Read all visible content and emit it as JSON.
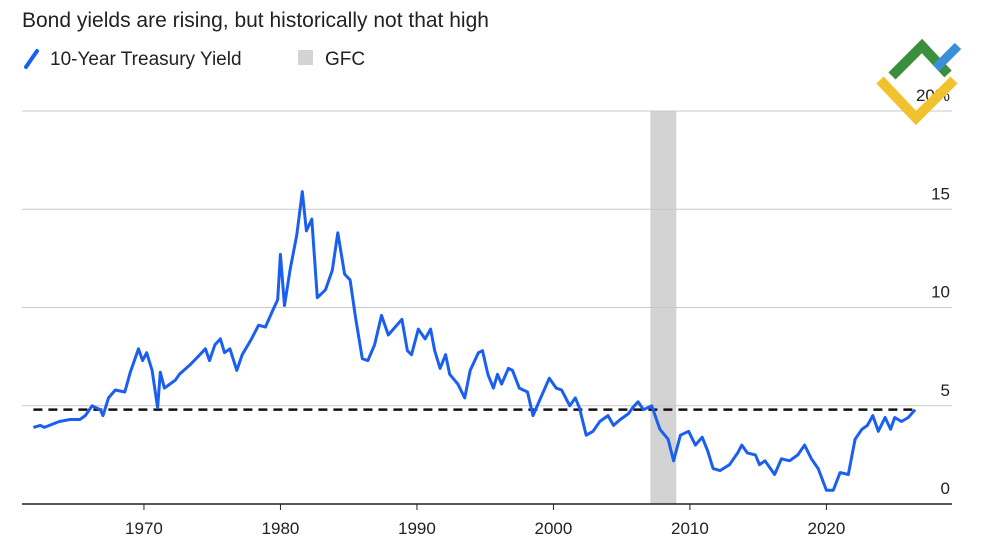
{
  "chart_data": {
    "type": "line",
    "title": "Bond yields are rising, but historically not that high",
    "series": [
      {
        "name": "10-Year Treasury Yield",
        "color": "#1a5ff0",
        "x": [
          1961.9,
          1962.4,
          1962.7,
          1963.8,
          1964.6,
          1965.3,
          1965.7,
          1966.2,
          1966.8,
          1967.0,
          1967.4,
          1967.9,
          1968.6,
          1969.0,
          1969.6,
          1969.9,
          1970.2,
          1970.6,
          1971.0,
          1971.2,
          1971.5,
          1972.3,
          1972.6,
          1973.4,
          1974.1,
          1974.5,
          1974.8,
          1975.2,
          1975.6,
          1975.9,
          1976.3,
          1976.8,
          1977.2,
          1977.8,
          1978.4,
          1978.9,
          1979.4,
          1979.8,
          1980.0,
          1980.3,
          1980.7,
          1981.2,
          1981.6,
          1981.9,
          1982.3,
          1982.7,
          1983.3,
          1983.8,
          1984.2,
          1984.7,
          1985.1,
          1985.5,
          1986.0,
          1986.4,
          1986.9,
          1987.4,
          1987.9,
          1988.4,
          1988.9,
          1989.3,
          1989.6,
          1990.1,
          1990.6,
          1991.0,
          1991.3,
          1991.7,
          1992.1,
          1992.4,
          1993.0,
          1993.5,
          1993.9,
          1994.5,
          1994.8,
          1995.2,
          1995.6,
          1995.9,
          1996.2,
          1996.7,
          1997.0,
          1997.5,
          1998.1,
          1998.5,
          1999.0,
          1999.7,
          2000.2,
          2000.6,
          2001.2,
          2001.6,
          2001.9,
          2002.4,
          2002.9,
          2003.4,
          2004.0,
          2004.4,
          2004.9,
          2005.5,
          2005.8,
          2006.2,
          2006.6,
          2007.2,
          2007.8,
          2008.4,
          2008.8,
          2009.3,
          2009.9,
          2010.4,
          2010.9,
          2011.3,
          2011.7,
          2012.2,
          2012.9,
          2013.5,
          2013.8,
          2014.2,
          2014.8,
          2015.1,
          2015.5,
          2016.2,
          2016.7,
          2017.3,
          2017.9,
          2018.4,
          2018.9,
          2019.4,
          2020.0,
          2020.5,
          2021.0,
          2021.6,
          2022.1,
          2022.6,
          2023.0,
          2023.4,
          2023.8,
          2024.3,
          2024.7,
          2025.0,
          2025.5,
          2026.0,
          2026.5
        ],
        "values": [
          3.9,
          4.0,
          3.9,
          4.2,
          4.3,
          4.3,
          4.5,
          5.0,
          4.8,
          4.5,
          5.4,
          5.8,
          5.7,
          6.7,
          7.9,
          7.3,
          7.7,
          6.8,
          4.9,
          6.7,
          5.9,
          6.3,
          6.6,
          7.1,
          7.6,
          7.9,
          7.3,
          8.1,
          8.4,
          7.7,
          7.9,
          6.8,
          7.6,
          8.3,
          9.1,
          9.0,
          9.8,
          10.4,
          12.7,
          10.1,
          11.9,
          13.7,
          15.9,
          13.9,
          14.5,
          10.5,
          10.9,
          11.9,
          13.8,
          11.7,
          11.4,
          9.5,
          7.4,
          7.3,
          8.1,
          9.6,
          8.6,
          9.0,
          9.4,
          7.8,
          7.6,
          8.9,
          8.4,
          8.9,
          7.8,
          6.9,
          7.6,
          6.6,
          6.1,
          5.4,
          6.8,
          7.7,
          7.8,
          6.6,
          5.9,
          6.6,
          6.1,
          6.9,
          6.8,
          5.9,
          5.7,
          4.5,
          5.3,
          6.4,
          5.9,
          5.8,
          5.0,
          5.4,
          4.9,
          3.5,
          3.7,
          4.2,
          4.5,
          4.0,
          4.3,
          4.6,
          4.9,
          5.2,
          4.8,
          5.0,
          3.8,
          3.3,
          2.2,
          3.5,
          3.7,
          3.0,
          3.4,
          2.7,
          1.8,
          1.7,
          2.0,
          2.6,
          3.0,
          2.6,
          2.5,
          2.0,
          2.2,
          1.5,
          2.3,
          2.2,
          2.5,
          3.0,
          2.3,
          1.8,
          0.7,
          0.7,
          1.6,
          1.5,
          3.3,
          3.8,
          4.0,
          4.5,
          3.7,
          4.4,
          3.8,
          4.4,
          4.2,
          4.4,
          4.8
        ]
      }
    ],
    "band": {
      "name": "GFC",
      "color": "#d3d3d3",
      "x": [
        2007.1,
        2009.0
      ]
    },
    "reference_line": 4.8,
    "xlim": [
      1961.6,
      2029.2
    ],
    "xticks": [
      1970,
      1980,
      1990,
      2000,
      2010,
      2020
    ],
    "ylim": [
      0,
      20
    ],
    "yticks": [
      0,
      5,
      10,
      15,
      {
        "value": 20,
        "label": "20%"
      }
    ],
    "grid": true
  }
}
